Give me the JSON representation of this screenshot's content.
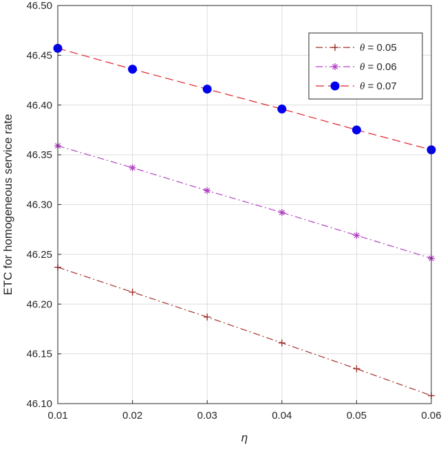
{
  "chart_data": {
    "type": "line",
    "title": "",
    "xlabel": "η",
    "ylabel": "ETC for homogeneous service rate",
    "xlim": [
      0.01,
      0.06
    ],
    "ylim": [
      46.1,
      46.5
    ],
    "grid": true,
    "legend_position": "top-right",
    "x_ticks": [
      "0.01",
      "0.02",
      "0.03",
      "0.04",
      "0.05",
      "0.06"
    ],
    "y_ticks": [
      "46.10",
      "46.15",
      "46.20",
      "46.25",
      "46.30",
      "46.35",
      "46.40",
      "46.45",
      "46.50"
    ],
    "x": [
      0.01,
      0.02,
      0.03,
      0.04,
      0.05,
      0.06
    ],
    "series": [
      {
        "name_symbol": "θ",
        "name_value": " = 0.05",
        "values": [
          46.237,
          46.212,
          46.187,
          46.161,
          46.135,
          46.108
        ],
        "color": "#a0302a",
        "marker": "plus",
        "line_style": "dash-dot"
      },
      {
        "name_symbol": "θ",
        "name_value": " = 0.06",
        "values": [
          46.359,
          46.337,
          46.314,
          46.292,
          46.269,
          46.246
        ],
        "color": "#b040c0",
        "marker": "asterisk",
        "line_style": "dash-dot"
      },
      {
        "name_symbol": "θ",
        "name_value": " = 0.07",
        "values": [
          46.457,
          46.436,
          46.416,
          46.396,
          46.375,
          46.355
        ],
        "color": "#e0202a",
        "marker_color": "#0000ee",
        "marker": "circle",
        "line_style": "dash"
      }
    ]
  }
}
